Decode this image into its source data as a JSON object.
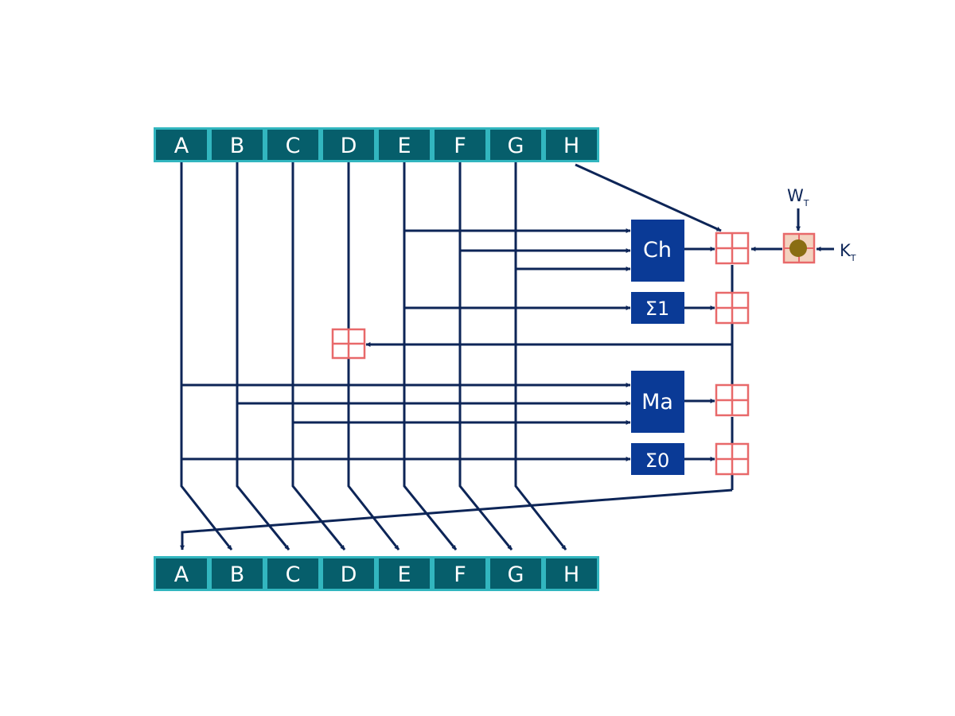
{
  "registers_in": [
    "A",
    "B",
    "C",
    "D",
    "E",
    "F",
    "G",
    "H"
  ],
  "registers_out": [
    "A",
    "B",
    "C",
    "D",
    "E",
    "F",
    "G",
    "H"
  ],
  "functions": {
    "ch": "Ch",
    "sigma1": "Σ1",
    "ma": "Ma",
    "sigma0": "Σ0"
  },
  "inputs": {
    "w": {
      "letter": "W",
      "sub": "T"
    },
    "k": {
      "letter": "K",
      "sub": "T"
    }
  },
  "colors": {
    "register_fill": "#065e6b",
    "register_border": "#32b6bf",
    "function_fill": "#0a3a96",
    "line": "#0d2557",
    "adder": "#e8696a",
    "combiner_fill": "#8a6d13"
  }
}
